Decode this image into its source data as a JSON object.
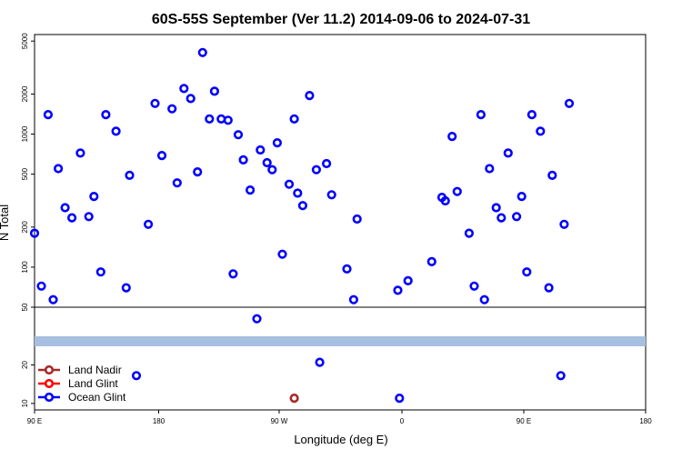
{
  "chart_data": {
    "type": "scatter",
    "title": "60S-55S September (Ver 11.2)   2014-09-06 to 2024-07-31",
    "xlabel": "Longitude (deg E)",
    "ylabel": "N Total",
    "x_ticks": [
      "90 E",
      "180",
      "90 W",
      "0",
      "90 E",
      "180"
    ],
    "y_ticks_upper": [
      "50",
      "100",
      "200",
      "500",
      "1000",
      "2000",
      "5000"
    ],
    "y_ticks_lower": [
      "10",
      "20"
    ],
    "scale": "log",
    "grid": false,
    "legend_position": "bottom-left",
    "legend": [
      {
        "name": "Land Nadir",
        "color": "#a52a2a"
      },
      {
        "name": "Land Glint",
        "color": "#ff0000"
      },
      {
        "name": "Ocean Glint",
        "color": "#0000ff"
      }
    ],
    "band_color": "#a7bfe0",
    "series": [
      {
        "name": "Ocean Glint",
        "color": "#0000ff",
        "points": [
          {
            "x": 90,
            "y": 180
          },
          {
            "x": 94,
            "y": 72
          },
          {
            "x": 98,
            "y": 1400
          },
          {
            "x": 101,
            "y": 57
          },
          {
            "x": 104,
            "y": 550
          },
          {
            "x": 108,
            "y": 280
          },
          {
            "x": 112,
            "y": 235
          },
          {
            "x": 117,
            "y": 720
          },
          {
            "x": 122,
            "y": 240
          },
          {
            "x": 125,
            "y": 340
          },
          {
            "x": 129,
            "y": 92
          },
          {
            "x": 132,
            "y": 1400
          },
          {
            "x": 138,
            "y": 1050
          },
          {
            "x": 144,
            "y": 70
          },
          {
            "x": 146,
            "y": 490
          },
          {
            "x": 150,
            "y": 16.5
          },
          {
            "x": 157,
            "y": 210
          },
          {
            "x": 161,
            "y": 1700
          },
          {
            "x": 165,
            "y": 690
          },
          {
            "x": 171,
            "y": 1550
          },
          {
            "x": 174,
            "y": 430
          },
          {
            "x": 178,
            "y": 2200
          },
          {
            "x": 182,
            "y": 1850
          },
          {
            "x": 186,
            "y": 520
          },
          {
            "x": 189,
            "y": 4100
          },
          {
            "x": 193,
            "y": 1300
          },
          {
            "x": 196,
            "y": 2100
          },
          {
            "x": 200,
            "y": 1300
          },
          {
            "x": 204,
            "y": 1270
          },
          {
            "x": 207,
            "y": 89
          },
          {
            "x": 210,
            "y": 990
          },
          {
            "x": 213,
            "y": 640
          },
          {
            "x": 217,
            "y": 380
          },
          {
            "x": 221,
            "y": 46
          },
          {
            "x": 223,
            "y": 760
          },
          {
            "x": 227,
            "y": 610
          },
          {
            "x": 230,
            "y": 540
          },
          {
            "x": 233,
            "y": 860
          },
          {
            "x": 236,
            "y": 125
          },
          {
            "x": 240,
            "y": 420
          },
          {
            "x": 243,
            "y": 1300
          },
          {
            "x": 245,
            "y": 360
          },
          {
            "x": 248,
            "y": 290
          },
          {
            "x": 252,
            "y": 1950
          },
          {
            "x": 256,
            "y": 540
          },
          {
            "x": 258,
            "y": 21
          },
          {
            "x": 262,
            "y": 600
          },
          {
            "x": 265,
            "y": 350
          },
          {
            "x": 274,
            "y": 97
          },
          {
            "x": 278,
            "y": 57
          },
          {
            "x": 280,
            "y": 230
          },
          {
            "x": 304,
            "y": 67
          },
          {
            "x": 305,
            "y": 11
          },
          {
            "x": 310,
            "y": 79
          },
          {
            "x": 324,
            "y": 110
          },
          {
            "x": 330,
            "y": 335
          },
          {
            "x": 332,
            "y": 315
          },
          {
            "x": 336,
            "y": 960
          },
          {
            "x": 339,
            "y": 370
          },
          {
            "x": 346,
            "y": 180
          },
          {
            "x": 349,
            "y": 72
          },
          {
            "x": 353,
            "y": 1400
          },
          {
            "x": 355,
            "y": 57
          },
          {
            "x": 358,
            "y": 550
          },
          {
            "x": 362,
            "y": 280
          },
          {
            "x": 365,
            "y": 235
          },
          {
            "x": 369,
            "y": 720
          },
          {
            "x": 374,
            "y": 240
          },
          {
            "x": 377,
            "y": 340
          },
          {
            "x": 380,
            "y": 92
          },
          {
            "x": 383,
            "y": 1400
          },
          {
            "x": 388,
            "y": 1050
          },
          {
            "x": 393,
            "y": 70
          },
          {
            "x": 395,
            "y": 490
          },
          {
            "x": 400,
            "y": 16.5
          },
          {
            "x": 402,
            "y": 210
          },
          {
            "x": 405,
            "y": 1700
          }
        ]
      },
      {
        "name": "Land Nadir",
        "color": "#a52a2a",
        "points": [
          {
            "x": 243,
            "y": 11
          }
        ]
      }
    ]
  }
}
